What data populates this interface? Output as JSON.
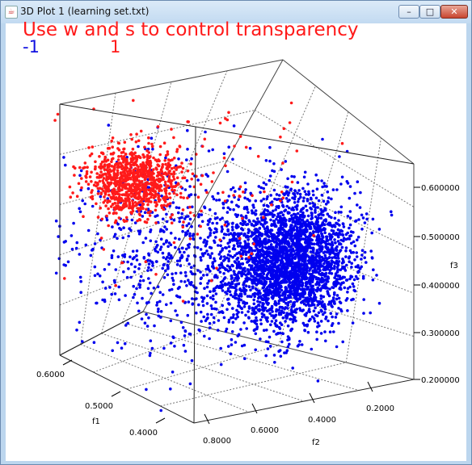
{
  "window": {
    "title": "3D Plot 1 (learning set.txt)",
    "app_icon": "java-cup-icon",
    "minimize_icon": "minimize-icon",
    "maximize_icon": "maximize-icon",
    "close_icon": "close-icon"
  },
  "overlay": {
    "instruction": "Use w and s to control transparency",
    "legend_negative": "-1",
    "legend_positive": "1"
  },
  "colors": {
    "class_neg": "#0000ee",
    "class_pos": "#ff1a1a",
    "instruction": "#ff1a1a"
  },
  "chart_data": {
    "type": "scatter",
    "dimensions": 3,
    "axes": {
      "f1": {
        "label": "f1",
        "ticks": [
          "0.6000",
          "0.5000",
          "0.4000"
        ]
      },
      "f2": {
        "label": "f2",
        "ticks": [
          "0.8000",
          "0.6000",
          "0.4000",
          "0.2000"
        ]
      },
      "f3": {
        "label": "f3",
        "ticks": [
          "0.200000",
          "0.300000",
          "0.400000",
          "0.500000",
          "0.600000"
        ]
      }
    },
    "series": [
      {
        "name": "-1",
        "color": "#0000ee"
      },
      {
        "name": "1",
        "color": "#ff1a1a"
      }
    ],
    "grid": true
  }
}
